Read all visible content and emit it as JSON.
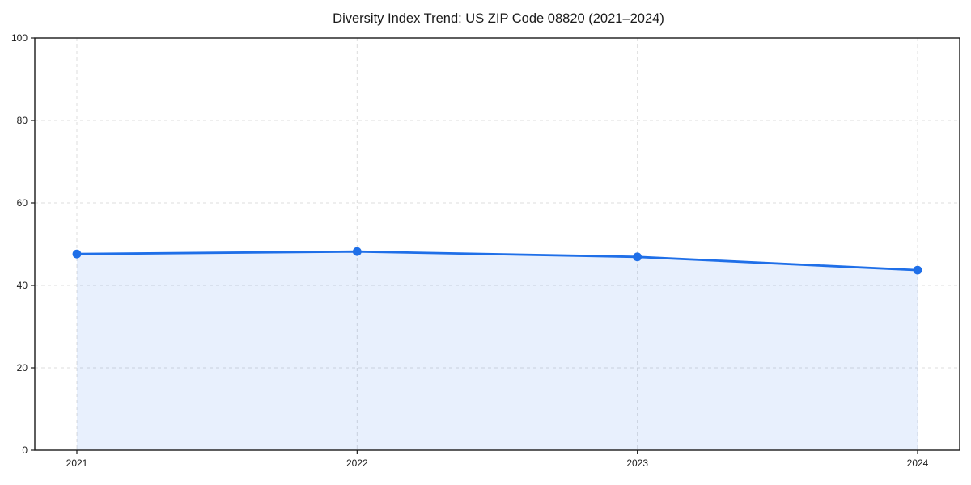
{
  "title": "Diversity Index Trend: US ZIP Code 08820 (2021–2024)",
  "chart_data": {
    "type": "area",
    "title": "Diversity Index Trend: US ZIP Code 08820 (2021–2024)",
    "series_name": "Diversity Index",
    "categories": [
      "2021",
      "2022",
      "2023",
      "2024"
    ],
    "values": [
      47.6,
      48.2,
      46.9,
      43.7
    ],
    "xlabel": "",
    "ylabel": "",
    "ylim": [
      0,
      100
    ],
    "yticks": [
      0,
      20,
      40,
      60,
      80,
      100
    ],
    "grid": true,
    "grid_style": "dashed",
    "legend": "none",
    "colors": {
      "line": "#1f6fe8",
      "marker": "#1f6fe8",
      "fill_tint": "#e8effc",
      "grid": "#dcdcdc",
      "axis": "#1a1a1a",
      "text": "#1a1a1a",
      "background": "#ffffff"
    }
  }
}
